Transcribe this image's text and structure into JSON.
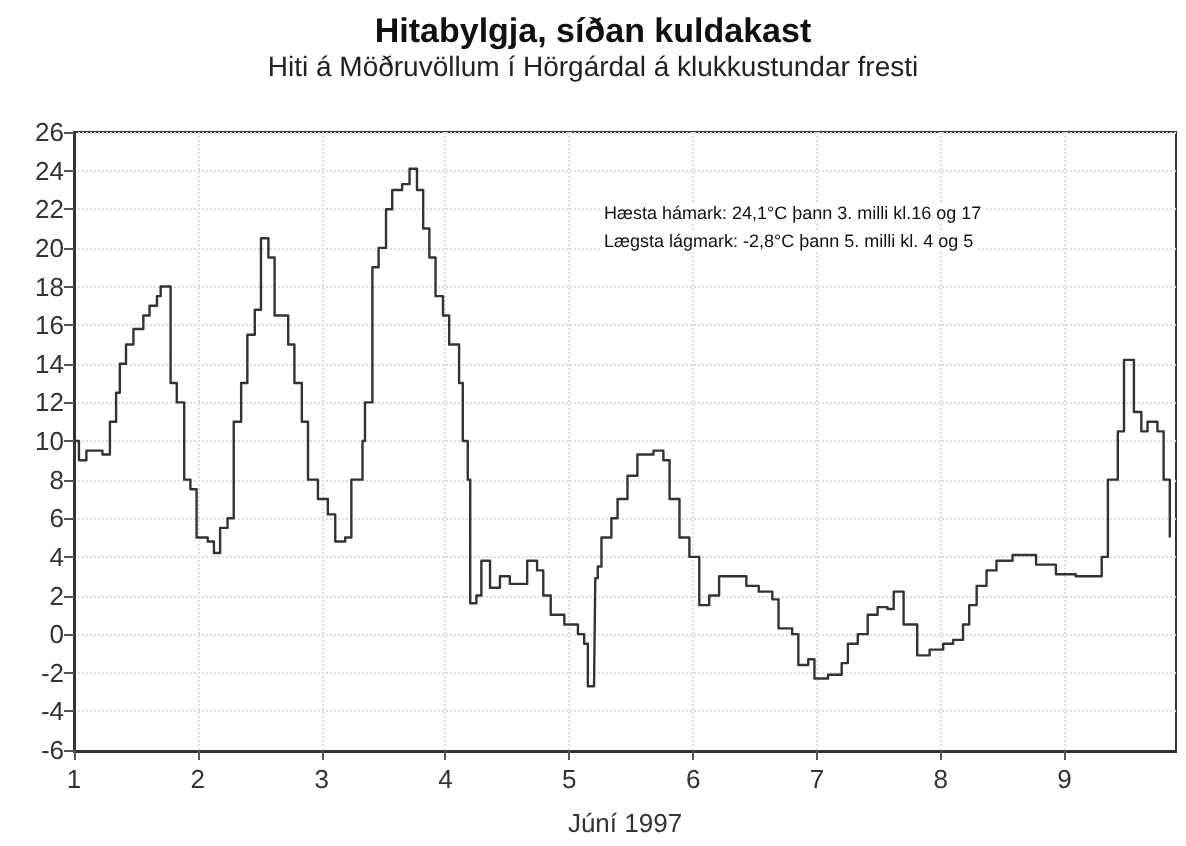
{
  "chart_data": {
    "type": "step",
    "title": "Hitabylgja, síðan kuldakast",
    "subtitle": "Hiti á Möðruvöllum í Hörgárdal á klukkustundar fresti",
    "xlabel": "Júní 1997",
    "annotations": [
      "Hæsta hámark: 24,1°C þann 3. milli kl.16 og 17",
      "Lægsta lágmark: -2,8°C þann 5. milli kl. 4 og 5"
    ],
    "x": [
      1.0,
      1.04,
      1.1,
      1.23,
      1.29,
      1.34,
      1.37,
      1.42,
      1.48,
      1.56,
      1.61,
      1.67,
      1.7,
      1.76,
      1.78,
      1.83,
      1.89,
      1.94,
      1.99,
      2.08,
      2.13,
      2.18,
      2.24,
      2.29,
      2.35,
      2.4,
      2.46,
      2.51,
      2.57,
      2.62,
      2.67,
      2.73,
      2.78,
      2.84,
      2.89,
      2.97,
      3.05,
      3.11,
      3.19,
      3.24,
      3.33,
      3.35,
      3.41,
      3.46,
      3.52,
      3.57,
      3.65,
      3.71,
      3.77,
      3.82,
      3.87,
      3.92,
      3.98,
      4.03,
      4.11,
      4.14,
      4.18,
      4.2,
      4.25,
      4.29,
      4.36,
      4.44,
      4.52,
      4.66,
      4.74,
      4.79,
      4.85,
      4.96,
      5.07,
      5.12,
      5.15,
      5.2,
      5.21,
      5.23,
      5.26,
      5.34,
      5.39,
      5.47,
      5.55,
      5.68,
      5.76,
      5.81,
      5.89,
      5.97,
      6.05,
      6.13,
      6.21,
      6.37,
      6.43,
      6.53,
      6.64,
      6.69,
      6.8,
      6.85,
      6.93,
      6.98,
      7.09,
      7.2,
      7.25,
      7.33,
      7.41,
      7.49,
      7.57,
      7.62,
      7.7,
      7.81,
      7.91,
      8.02,
      8.1,
      8.18,
      8.23,
      8.29,
      8.37,
      8.45,
      8.58,
      8.77,
      8.93,
      9.09,
      9.24,
      9.3,
      9.35,
      9.43,
      9.48,
      9.54,
      9.56,
      9.62,
      9.67,
      9.75,
      9.8,
      9.85
    ],
    "series": [
      {
        "color": "#333333",
        "values": [
          10,
          9,
          9.5,
          9.3,
          11,
          12.5,
          14,
          15,
          15.8,
          16.5,
          17,
          17.5,
          18,
          18,
          13,
          12,
          8,
          7.5,
          5,
          4.8,
          4.2,
          5.5,
          6,
          11,
          13,
          15.5,
          16.8,
          20.5,
          19.5,
          16.5,
          16.5,
          15,
          13,
          11,
          8,
          7,
          6.2,
          4.8,
          5,
          8,
          10,
          12,
          19,
          20,
          22,
          23,
          23.3,
          24.1,
          23,
          21,
          19.5,
          17.5,
          16.5,
          15,
          13,
          10,
          8,
          1.6,
          2,
          3.8,
          2.4,
          3,
          2.6,
          3.8,
          3.3,
          2,
          1,
          0.5,
          0,
          -0.5,
          -2.7,
          -2.7,
          2.9,
          3.5,
          5,
          6,
          7,
          8.2,
          9.3,
          9.5,
          9,
          7,
          5,
          4,
          1.5,
          2,
          3,
          3,
          2.5,
          2.2,
          1.8,
          0.3,
          0,
          -1.6,
          -1.3,
          -2.3,
          -2.1,
          -1.5,
          -0.5,
          0,
          1,
          1.4,
          1.3,
          2.2,
          0.5,
          -1.1,
          -0.8,
          -0.5,
          -0.3,
          0.5,
          1.5,
          2.5,
          3.3,
          3.8,
          4.1,
          3.6,
          3.1,
          3,
          3,
          4,
          8,
          10.5,
          14.2,
          14.2,
          11.5,
          10.5,
          11,
          10.5,
          8,
          5
        ]
      }
    ],
    "xlim": [
      1,
      9.9
    ],
    "xticks": [
      1,
      2,
      3,
      4,
      5,
      6,
      7,
      8,
      9
    ],
    "ylim": [
      -6,
      26
    ],
    "yticks": [
      -6,
      -4,
      -2,
      0,
      2,
      4,
      6,
      8,
      10,
      12,
      14,
      16,
      18,
      20,
      22,
      24,
      26
    ],
    "grid": true,
    "marker": "none",
    "line_style": "solid"
  }
}
